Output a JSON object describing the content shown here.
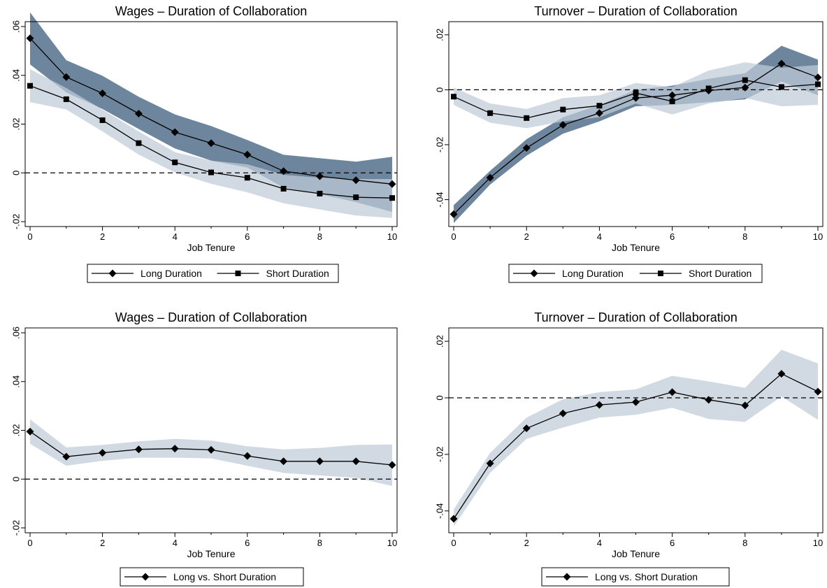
{
  "colors": {
    "dark_band": "#55718c",
    "light_band": "#bfccd8",
    "line": "#000000"
  },
  "chart_data": [
    {
      "type": "line",
      "title": "Wages – Duration of Collaboration",
      "xlabel": "Job Tenure",
      "ylabel": "",
      "xlim": [
        0,
        10
      ],
      "ylim": [
        -0.02,
        0.06
      ],
      "xticks": [
        0,
        2,
        4,
        6,
        8,
        10
      ],
      "xtick_labels": [
        "0",
        "2",
        "4",
        "6",
        "8",
        "10"
      ],
      "yticks": [
        -0.02,
        0,
        0.02,
        0.04,
        0.06
      ],
      "ytick_labels": [
        "-.02",
        "0",
        ".02",
        ".04",
        ".06"
      ],
      "reference_line": 0,
      "legend": [
        "Long Duration",
        "Short Duration"
      ],
      "legend_position": "bottom",
      "x": [
        0,
        1,
        2,
        3,
        4,
        5,
        6,
        7,
        8,
        9,
        10
      ],
      "series": [
        {
          "name": "Long Duration",
          "marker": "diamond",
          "band": "dark",
          "values": [
            0.0552,
            0.0393,
            0.0326,
            0.0243,
            0.0167,
            0.0122,
            0.0075,
            0.0007,
            -0.0014,
            -0.003,
            -0.0046
          ],
          "lower": [
            0.0445,
            0.033,
            0.0262,
            0.018,
            0.01,
            0.005,
            0.0022,
            -0.006,
            -0.0088,
            -0.012,
            -0.016
          ],
          "upper": [
            0.0658,
            0.0462,
            0.0398,
            0.0312,
            0.024,
            0.0192,
            0.0135,
            0.0074,
            0.006,
            0.0046,
            0.0066
          ]
        },
        {
          "name": "Short Duration",
          "marker": "square",
          "band": "light",
          "values": [
            0.0357,
            0.0302,
            0.0216,
            0.0122,
            0.0043,
            0.0002,
            -0.002,
            -0.0065,
            -0.0085,
            -0.01,
            -0.0103
          ],
          "lower": [
            0.029,
            0.026,
            0.017,
            0.0075,
            0.0002,
            -0.0045,
            -0.008,
            -0.0125,
            -0.015,
            -0.0175,
            -0.0185
          ],
          "upper": [
            0.0425,
            0.0348,
            0.026,
            0.017,
            0.0085,
            0.005,
            0.0035,
            -0.0008,
            -0.002,
            -0.0025,
            -0.0025
          ]
        }
      ]
    },
    {
      "type": "line",
      "title": "Turnover – Duration of Collaboration",
      "xlabel": "Job Tenure",
      "ylabel": "",
      "xlim": [
        0,
        10
      ],
      "ylim": [
        -0.048,
        0.023
      ],
      "xticks": [
        0,
        2,
        4,
        6,
        8,
        10
      ],
      "xtick_labels": [
        "0",
        "2",
        "4",
        "6",
        "8",
        "10"
      ],
      "yticks": [
        -0.04,
        -0.02,
        0,
        0.02
      ],
      "ytick_labels": [
        "-.04",
        "-.02",
        "0",
        ".02"
      ],
      "reference_line": 0,
      "legend": [
        "Long Duration",
        "Short Duration"
      ],
      "legend_position": "bottom",
      "x": [
        0,
        1,
        2,
        3,
        4,
        5,
        6,
        7,
        8,
        9,
        10
      ],
      "series": [
        {
          "name": "Long Duration",
          "marker": "diamond",
          "band": "dark",
          "values": [
            -0.0453,
            -0.032,
            -0.0212,
            -0.0128,
            -0.0085,
            -0.003,
            -0.002,
            -0.0003,
            0.0008,
            0.0095,
            0.0045
          ],
          "lower": [
            -0.0485,
            -0.0345,
            -0.024,
            -0.016,
            -0.0115,
            -0.006,
            -0.0055,
            -0.0045,
            -0.0035,
            0.003,
            -0.002
          ],
          "upper": [
            -0.042,
            -0.0295,
            -0.018,
            -0.01,
            -0.0055,
            0.0,
            0.0015,
            0.004,
            0.006,
            0.016,
            0.011
          ]
        },
        {
          "name": "Short Duration",
          "marker": "square",
          "band": "light",
          "values": [
            -0.0025,
            -0.0085,
            -0.0103,
            -0.0072,
            -0.0058,
            -0.0012,
            -0.0042,
            0.0005,
            0.0035,
            0.001,
            0.002
          ],
          "lower": [
            -0.0055,
            -0.012,
            -0.014,
            -0.0115,
            -0.01,
            -0.005,
            -0.009,
            -0.005,
            -0.003,
            -0.006,
            -0.0055
          ],
          "upper": [
            0.0008,
            -0.005,
            -0.007,
            -0.003,
            -0.002,
            0.0025,
            0.001,
            0.007,
            0.01,
            0.008,
            0.009
          ]
        }
      ]
    },
    {
      "type": "line",
      "title": "Wages – Duration of Collaboration",
      "xlabel": "Job Tenure",
      "ylabel": "",
      "xlim": [
        0,
        10
      ],
      "ylim": [
        -0.02,
        0.06
      ],
      "xticks": [
        0,
        2,
        4,
        6,
        8,
        10
      ],
      "xtick_labels": [
        "0",
        "2",
        "4",
        "6",
        "8",
        "10"
      ],
      "yticks": [
        -0.02,
        0,
        0.02,
        0.04,
        0.06
      ],
      "ytick_labels": [
        "-.02",
        "0",
        ".02",
        ".04",
        ".06"
      ],
      "reference_line": 0,
      "legend": [
        "Long vs. Short Duration"
      ],
      "legend_position": "bottom",
      "x": [
        0,
        1,
        2,
        3,
        4,
        5,
        6,
        7,
        8,
        9,
        10
      ],
      "series": [
        {
          "name": "Long vs. Short Duration",
          "marker": "diamond",
          "band": "light",
          "values": [
            0.0195,
            0.0092,
            0.0108,
            0.0122,
            0.0125,
            0.012,
            0.0095,
            0.0073,
            0.0073,
            0.0073,
            0.0058
          ],
          "lower": [
            0.0145,
            0.0055,
            0.0075,
            0.0088,
            0.0088,
            0.0085,
            0.0055,
            0.0025,
            0.0015,
            0.0005,
            -0.0028
          ],
          "upper": [
            0.0245,
            0.013,
            0.014,
            0.0155,
            0.0165,
            0.0158,
            0.0135,
            0.0122,
            0.0128,
            0.014,
            0.0142
          ]
        }
      ]
    },
    {
      "type": "line",
      "title": "Turnover – Duration of Collaboration",
      "xlabel": "Job Tenure",
      "ylabel": "",
      "xlim": [
        0,
        10
      ],
      "ylim": [
        -0.046,
        0.023
      ],
      "xticks": [
        0,
        2,
        4,
        6,
        8,
        10
      ],
      "xtick_labels": [
        "0",
        "2",
        "4",
        "6",
        "8",
        "10"
      ],
      "yticks": [
        -0.04,
        -0.02,
        0,
        0.02
      ],
      "ytick_labels": [
        "-.04",
        "-.02",
        "0",
        ".02"
      ],
      "reference_line": 0,
      "legend": [
        "Long vs. Short Duration"
      ],
      "legend_position": "bottom",
      "x": [
        0,
        1,
        2,
        3,
        4,
        5,
        6,
        7,
        8,
        9,
        10
      ],
      "series": [
        {
          "name": "Long vs. Short Duration",
          "marker": "diamond",
          "band": "light",
          "values": [
            -0.0428,
            -0.0232,
            -0.0108,
            -0.0055,
            -0.0025,
            -0.0015,
            0.002,
            -0.0007,
            -0.0027,
            0.0085,
            0.0022
          ],
          "lower": [
            -0.0455,
            -0.0265,
            -0.0145,
            -0.0105,
            -0.007,
            -0.006,
            -0.0035,
            -0.0075,
            -0.0085,
            0.0005,
            -0.0078
          ],
          "upper": [
            -0.0395,
            -0.0195,
            -0.007,
            -0.0005,
            0.002,
            0.003,
            0.0078,
            0.0058,
            0.0035,
            0.017,
            0.0122
          ]
        }
      ]
    }
  ]
}
